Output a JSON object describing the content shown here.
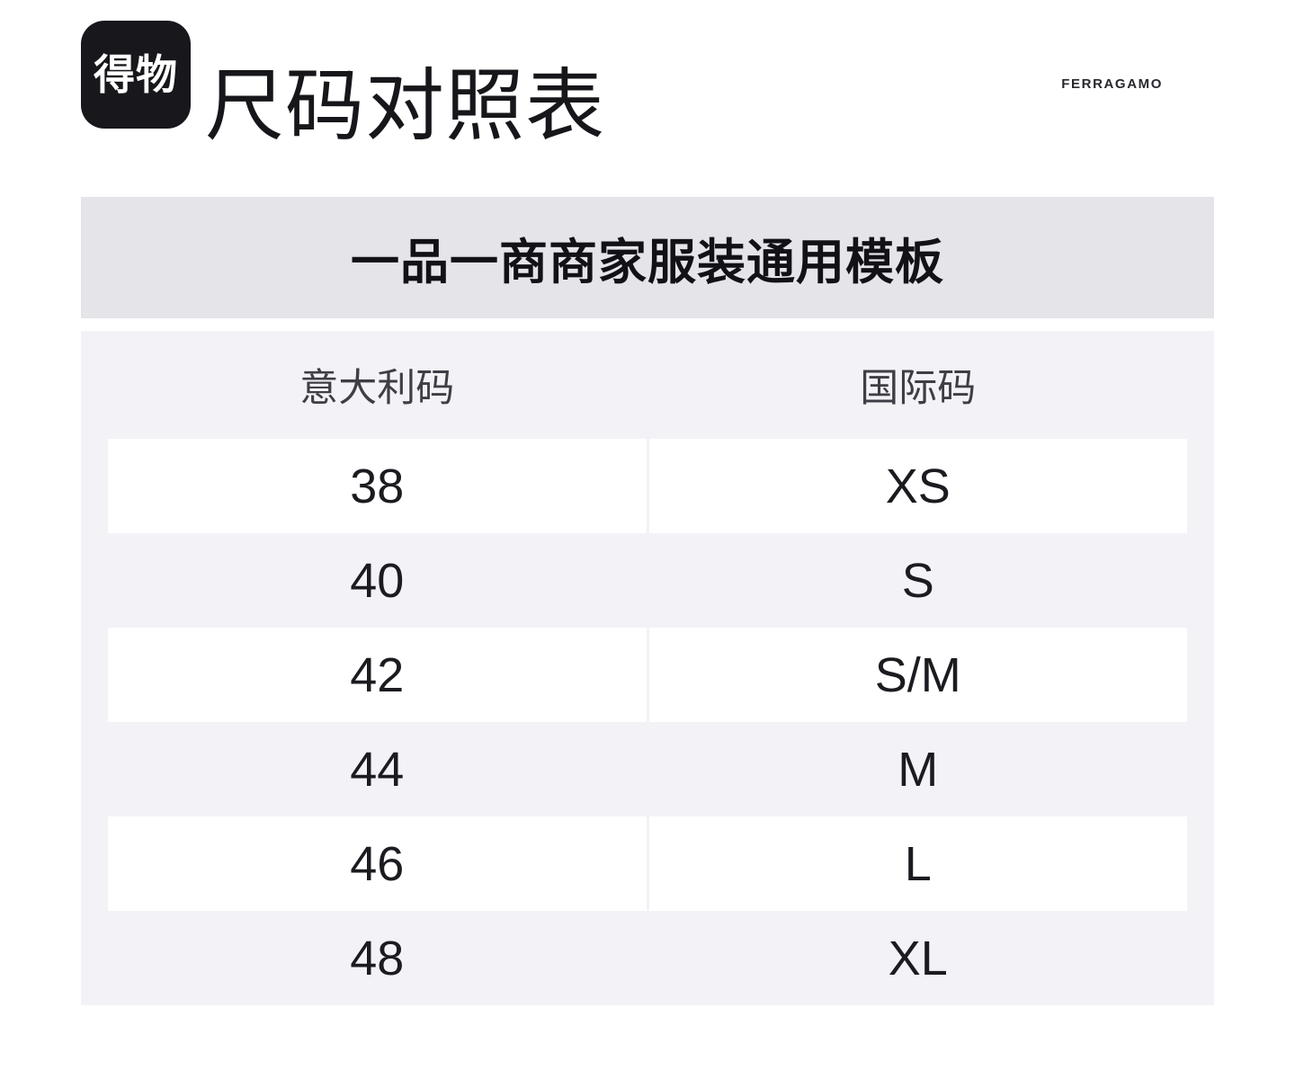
{
  "header": {
    "logo_text": "得物",
    "title": "尺码对照表",
    "brand": "FERRAGAMO"
  },
  "banner": {
    "title": "一品一商商家服装通用模板"
  },
  "size_table": {
    "columns": [
      "意大利码",
      "国际码"
    ],
    "rows": [
      [
        "38",
        "XS"
      ],
      [
        "40",
        "S"
      ],
      [
        "42",
        "S/M"
      ],
      [
        "44",
        "M"
      ],
      [
        "46",
        "L"
      ],
      [
        "48",
        "XL"
      ]
    ]
  },
  "colors": {
    "page_bg": "#ffffff",
    "logo_bg": "#17171c",
    "logo_text": "#ffffff",
    "banner_bg": "#e4e4e9",
    "table_bg": "#f3f3f7",
    "row_white_bg": "#ffffff",
    "title_text": "#17171b",
    "header_cell_text": "#3e3e46",
    "data_cell_text": "#1b1b20"
  }
}
